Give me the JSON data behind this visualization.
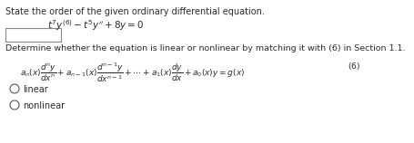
{
  "bg_color": "#ffffff",
  "title_line": "State the order of the given ordinary differential equation.",
  "equation": "$t^7y^{(6)} - t^5y'' + 8y = 0$",
  "determine_line": "Determine whether the equation is linear or nonlinear by matching it with (6) in Section 1.1.",
  "formula_left": "$a_n(x)\\dfrac{d^ny}{dx^n} + a_{n-1}(x)\\dfrac{d^{n-1}y}{dx^{n-1}} + \\cdots + a_1(x)\\dfrac{dy}{dx} + a_0(x)y = g(x)$",
  "formula_ref": "$(6)$",
  "option1": "linear",
  "option2": "nonlinear",
  "text_color": "#2a2a2a",
  "box_color": "#cccccc"
}
